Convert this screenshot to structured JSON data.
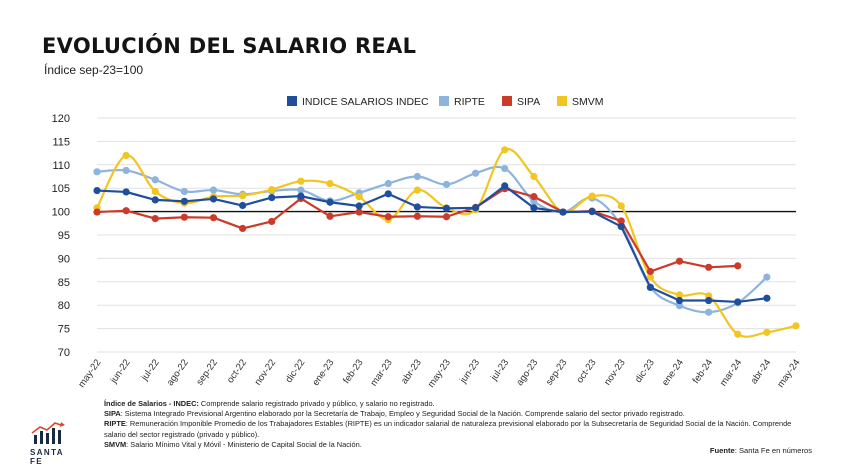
{
  "header": {
    "title": "EVOLUCIÓN DEL SALARIO REAL",
    "subtitle": "Índice sep-23=100"
  },
  "notes": [
    {
      "term": "Índice de Salarios - INDEC:",
      "text": " Comprende salario registrado privado y público, y salario no registrado."
    },
    {
      "term": "SIPA",
      "text": ": Sistema Integrado Previsional Argentino elaborado por la Secretaría de Trabajo, Empleo y Seguridad Social de la Nación. Comprende salario del sector privado registrado."
    },
    {
      "term": "RIPTE",
      "text": ": Remuneración Imponible Promedio de los Trabajadores Estables (RIPTE) es un indicador salarial de naturaleza previsional elaborado por la Subsecretaría de Seguridad Social de la Nación. Comprende salario del sector registrado (privado y público)."
    },
    {
      "term": "SMVM",
      "text": ": Salario Mínimo Vital y Móvil - Ministerio de Capital Social de la Nación."
    }
  ],
  "source": {
    "label": "Fuente",
    "text": ": Santa Fe en números"
  },
  "logo": {
    "text": "SANTA FE",
    "icon": "bar-chart-arrow-icon"
  },
  "chart_data": {
    "type": "line",
    "categories": [
      "may-22",
      "jun-22",
      "jul-22",
      "ago-22",
      "sep-22",
      "oct-22",
      "nov-22",
      "dic-22",
      "ene-23",
      "feb-23",
      "mar-23",
      "abr-23",
      "may-23",
      "jun-23",
      "jul-23",
      "ago-23",
      "sep-23",
      "oct-23",
      "nov-23",
      "dic-23",
      "ene-24",
      "feb-24",
      "mar-24",
      "abr-24",
      "may-24"
    ],
    "ylim": [
      70,
      120
    ],
    "yticks": [
      70,
      75,
      80,
      85,
      90,
      95,
      100,
      105,
      110,
      115,
      120
    ],
    "reference_line": 100,
    "grid": true,
    "legend_position": "top",
    "series": [
      {
        "name": "INDICE SALARIOS INDEC",
        "color": "#1f4e9c",
        "smooth": false,
        "values": [
          104.5,
          104.2,
          102.5,
          102.2,
          102.7,
          101.3,
          103.0,
          103.3,
          102.0,
          101.2,
          103.8,
          101.0,
          100.7,
          100.8,
          105.5,
          100.8,
          99.9,
          100.0,
          96.8,
          83.8,
          81.0,
          81.0,
          80.7,
          81.5,
          null
        ]
      },
      {
        "name": "RIPTE",
        "color": "#8db4dd",
        "smooth": true,
        "values": [
          108.5,
          108.8,
          106.8,
          104.3,
          104.6,
          103.7,
          104.4,
          104.6,
          102.3,
          104.0,
          106.0,
          107.5,
          105.8,
          108.2,
          109.2,
          102.2,
          99.9,
          102.9,
          97.0,
          83.9,
          79.9,
          78.5,
          80.5,
          86.0,
          null
        ]
      },
      {
        "name": "SIPA",
        "color": "#cc3a2a",
        "smooth": false,
        "values": [
          99.9,
          100.2,
          98.5,
          98.8,
          98.7,
          96.4,
          97.9,
          102.8,
          99.0,
          99.9,
          98.9,
          99.0,
          98.9,
          100.9,
          104.9,
          103.2,
          99.9,
          100.1,
          98.0,
          87.2,
          89.4,
          88.1,
          88.4,
          null,
          null
        ]
      },
      {
        "name": "SMVM",
        "color": "#f2c521",
        "smooth": true,
        "values": [
          100.8,
          112.0,
          104.3,
          101.8,
          103.2,
          103.4,
          104.7,
          106.5,
          106.0,
          103.2,
          98.3,
          104.6,
          100.8,
          100.4,
          113.2,
          107.5,
          99.9,
          103.3,
          101.2,
          86.0,
          82.2,
          82.0,
          73.8,
          74.2,
          75.6
        ]
      }
    ]
  }
}
